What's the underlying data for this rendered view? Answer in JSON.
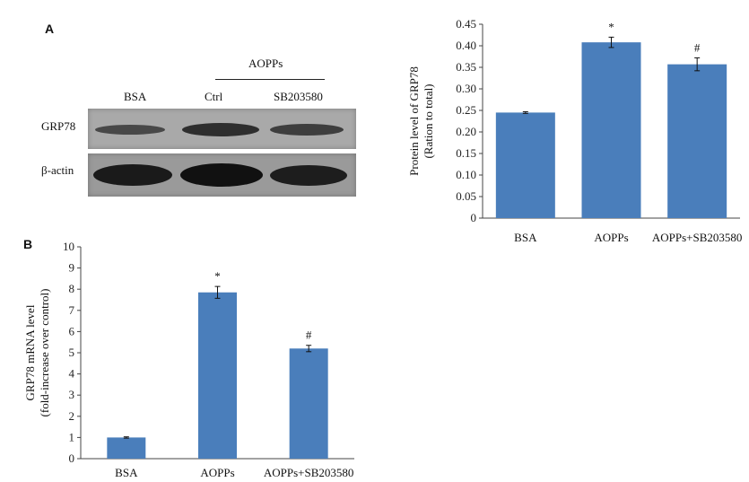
{
  "panels": {
    "a_label": "A",
    "b_label": "B"
  },
  "western_blot": {
    "group_label": "AOPPs",
    "lane_labels": [
      "BSA",
      "Ctrl",
      "SB203580"
    ],
    "row_labels": [
      "GRP78",
      "β-actin"
    ]
  },
  "chart_data": [
    {
      "type": "bar",
      "panel": "A",
      "categories": [
        "BSA",
        "AOPPs",
        "AOPPs+SB203580"
      ],
      "values": [
        0.245,
        0.408,
        0.357
      ],
      "errors": [
        0.002,
        0.012,
        0.015
      ],
      "annotations": [
        "",
        "*",
        "#"
      ],
      "ylabel_line1": "Protein level of GRP78",
      "ylabel_line2": "(Ration to total)",
      "ylim": [
        0,
        0.45
      ],
      "yticks": [
        "0",
        "0.05",
        "0.10",
        "0.15",
        "0.20",
        "0.25",
        "0.30",
        "0.35",
        "0.40",
        "0.45"
      ],
      "bar_color": "#4a7ebb",
      "grid": false
    },
    {
      "type": "bar",
      "panel": "B",
      "categories": [
        "BSA",
        "AOPPs",
        "AOPPs+SB203580"
      ],
      "values": [
        1.0,
        7.85,
        5.2
      ],
      "errors": [
        0.03,
        0.28,
        0.15
      ],
      "annotations": [
        "",
        "*",
        "#"
      ],
      "ylabel_line1": "GRP78 mRNA level",
      "ylabel_line2": "(fold-increase over control)",
      "ylim": [
        0,
        10
      ],
      "yticks": [
        "0",
        "1",
        "2",
        "3",
        "4",
        "5",
        "6",
        "7",
        "8",
        "9",
        "10"
      ],
      "bar_color": "#4a7ebb",
      "grid": false
    }
  ]
}
